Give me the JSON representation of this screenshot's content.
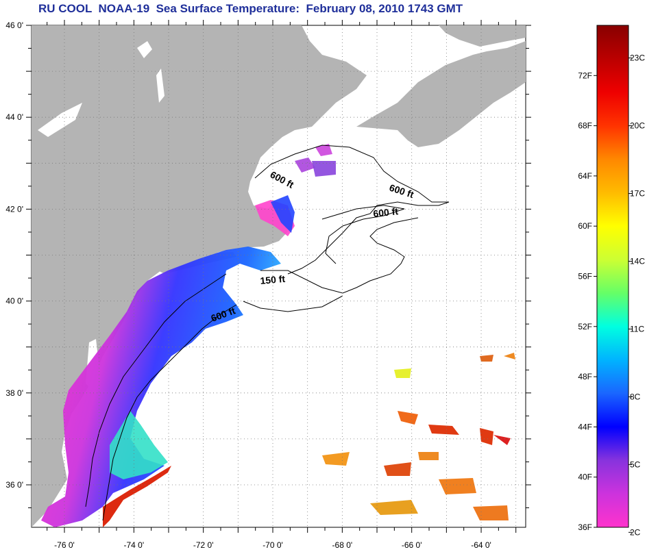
{
  "title": "RU COOL  NOAA-19  Sea Surface Temperature:  February 08, 2010 1743 GMT",
  "colors": {
    "title": "#1f2f9a",
    "land": "#b4b4b4",
    "ocean_nodata": "#ffffff",
    "grid": "#777777"
  },
  "map": {
    "lat_labels": [
      "46 0'",
      "44 0'",
      "42 0'",
      "40 0'",
      "38 0'",
      "36 0'"
    ],
    "lon_labels": [
      "-76 0'",
      "-74 0'",
      "-72 0'",
      "-70 0'",
      "-68 0'",
      "-66 0'",
      "-64 0'"
    ],
    "contour_labels": [
      "600 ft",
      "600 ft",
      "600 ft",
      "150 ft",
      "600 ft"
    ]
  },
  "colorbar": {
    "f_labels": [
      "72F",
      "68F",
      "64F",
      "60F",
      "56F",
      "52F",
      "48F",
      "44F",
      "40F",
      "36F"
    ],
    "c_labels": [
      "23C",
      "20C",
      "17C",
      "14C",
      "11C",
      "8C",
      "5C",
      "2C"
    ],
    "gradient": [
      "#ff33cc",
      "#cc33dd",
      "#8833dd",
      "#0000ff",
      "#1a66ff",
      "#00b3ff",
      "#00ffe0",
      "#66ff66",
      "#ccff33",
      "#ffff00",
      "#ffbb00",
      "#ff8800",
      "#ff3300",
      "#ee0000",
      "#bb0000",
      "#880000"
    ]
  }
}
